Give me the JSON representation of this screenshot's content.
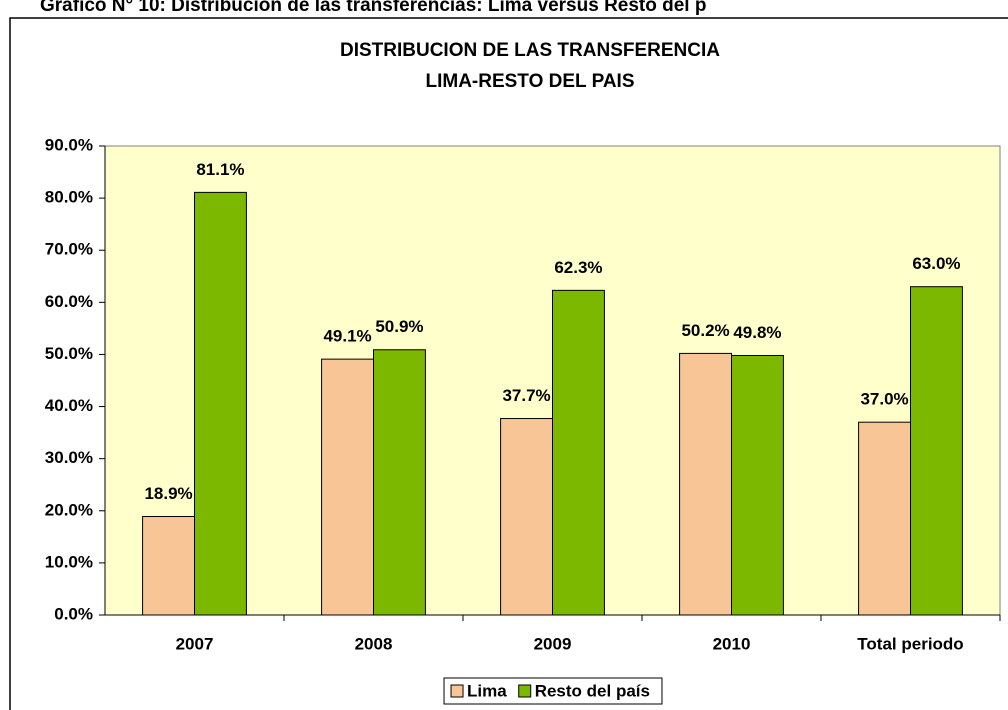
{
  "page_title": "Gráfico N° 10: Distribución de las transferencias: Lima versus Resto del p",
  "chart_data": {
    "type": "bar",
    "title": [
      "DISTRIBUCION DE LAS TRANSFERENCIA",
      "LIMA-RESTO DEL PAIS"
    ],
    "categories": [
      "2007",
      "2008",
      "2009",
      "2010",
      "Total periodo"
    ],
    "series": [
      {
        "name": "Lima",
        "color": "#f8c597",
        "values": [
          18.9,
          49.1,
          37.7,
          50.2,
          37.0
        ],
        "value_labels": [
          "18.9%",
          "49.1%",
          "37.7%",
          "50.2%",
          "37.0%"
        ]
      },
      {
        "name": "Resto del país",
        "color": "#7cb800",
        "values": [
          81.1,
          50.9,
          62.3,
          49.8,
          63.0
        ],
        "value_labels": [
          "81.1%",
          "50.9%",
          "62.3%",
          "49.8%",
          "63.0%"
        ]
      }
    ],
    "ylim": [
      0,
      90
    ],
    "yticks": [
      {
        "value": 0,
        "label": "0.0%"
      },
      {
        "value": 10,
        "label": "10.0%"
      },
      {
        "value": 20,
        "label": "20.0%"
      },
      {
        "value": 30,
        "label": "30.0%"
      },
      {
        "value": 40,
        "label": "40.0%"
      },
      {
        "value": 50,
        "label": "50.0%"
      },
      {
        "value": 60,
        "label": "60.0%"
      },
      {
        "value": 70,
        "label": "70.0%"
      },
      {
        "value": 80,
        "label": "80.0%"
      },
      {
        "value": 90,
        "label": "90.0%"
      }
    ],
    "grid": false,
    "legend": "bottom",
    "plot_background": "#ffffcc"
  }
}
